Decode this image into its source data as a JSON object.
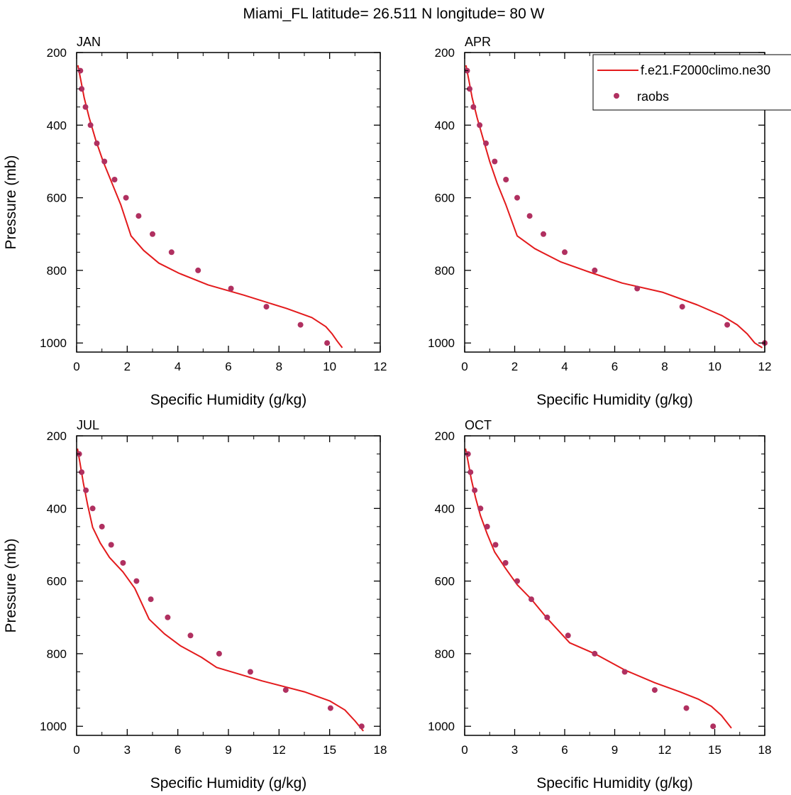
{
  "figure": {
    "title": "Miami_FL  latitude= 26.511 N longitude= 80 W"
  },
  "legend": {
    "model_label": "f.e21.F2000climo.ne30",
    "obs_label": "raobs",
    "placement": "top-right of APR panel"
  },
  "colors": {
    "model_line": "#e31a1c",
    "obs_marker": "#b03060",
    "axes": "#000000",
    "background": "#ffffff"
  },
  "chart_data": [
    {
      "type": "line",
      "panel_label": "JAN",
      "xlabel": "Specific Humidity (g/kg)",
      "ylabel": "Pressure (mb)",
      "xlim": [
        0,
        12
      ],
      "ylim": [
        200,
        1025
      ],
      "y_inverted": true,
      "xticks": [
        0,
        2,
        4,
        6,
        8,
        10,
        12
      ],
      "yticks": [
        200,
        400,
        600,
        800,
        1000
      ],
      "grid": false,
      "series": [
        {
          "name": "f.e21.F2000climo.ne30",
          "style": "line",
          "x": [
            0.05,
            0.15,
            0.3,
            0.5,
            0.75,
            1.05,
            1.4,
            1.75,
            2.15,
            2.65,
            3.25,
            4.05,
            5.2,
            6.6,
            8.3,
            9.3,
            9.85,
            10.1,
            10.3,
            10.5
          ],
          "y": [
            235,
            270,
            325,
            380,
            440,
            500,
            560,
            620,
            705,
            745,
            780,
            808,
            840,
            868,
            905,
            930,
            955,
            975,
            995,
            1013
          ]
        },
        {
          "name": "raobs",
          "style": "markers",
          "x": [
            0.15,
            0.2,
            0.35,
            0.55,
            0.8,
            1.1,
            1.5,
            1.95,
            2.45,
            3.0,
            3.75,
            4.8,
            6.1,
            7.5,
            8.85,
            9.9
          ],
          "y": [
            250,
            300,
            350,
            400,
            450,
            500,
            550,
            600,
            650,
            700,
            750,
            800,
            850,
            900,
            950,
            1000
          ]
        }
      ]
    },
    {
      "type": "line",
      "panel_label": "APR",
      "xlabel": "Specific Humidity (g/kg)",
      "ylabel": "",
      "xlim": [
        0,
        12
      ],
      "ylim": [
        200,
        1025
      ],
      "y_inverted": true,
      "xticks": [
        0,
        2,
        4,
        6,
        8,
        10,
        12
      ],
      "yticks": [
        200,
        400,
        600,
        800,
        1000
      ],
      "grid": false,
      "series": [
        {
          "name": "f.e21.F2000climo.ne30",
          "style": "line",
          "x": [
            0.05,
            0.15,
            0.3,
            0.5,
            0.75,
            1.0,
            1.3,
            1.65,
            2.1,
            2.8,
            3.85,
            5.0,
            6.3,
            7.9,
            9.3,
            10.3,
            10.9,
            11.3,
            11.6,
            11.9
          ],
          "y": [
            235,
            270,
            325,
            380,
            440,
            500,
            560,
            620,
            705,
            740,
            777,
            805,
            835,
            860,
            895,
            925,
            950,
            975,
            1000,
            1013
          ]
        },
        {
          "name": "raobs",
          "style": "markers",
          "x": [
            0.1,
            0.2,
            0.35,
            0.6,
            0.85,
            1.2,
            1.65,
            2.1,
            2.6,
            3.15,
            4.0,
            5.2,
            6.9,
            8.7,
            10.5,
            12.0
          ],
          "y": [
            250,
            300,
            350,
            400,
            450,
            500,
            550,
            600,
            650,
            700,
            750,
            800,
            850,
            900,
            950,
            1000
          ]
        }
      ]
    },
    {
      "type": "line",
      "panel_label": "JUL",
      "xlabel": "Specific Humidity (g/kg)",
      "ylabel": "Pressure (mb)",
      "xlim": [
        0,
        18
      ],
      "ylim": [
        200,
        1025
      ],
      "y_inverted": true,
      "xticks": [
        0,
        3,
        6,
        9,
        12,
        15,
        18
      ],
      "yticks": [
        200,
        400,
        600,
        800,
        1000
      ],
      "grid": false,
      "series": [
        {
          "name": "f.e21.F2000climo.ne30",
          "style": "line",
          "x": [
            0.05,
            0.2,
            0.4,
            0.65,
            0.95,
            1.4,
            1.95,
            2.75,
            3.45,
            4.3,
            5.2,
            6.15,
            7.4,
            8.3,
            11.0,
            13.5,
            15.0,
            15.9,
            16.5,
            17.0
          ],
          "y": [
            235,
            275,
            330,
            390,
            452,
            495,
            535,
            575,
            620,
            705,
            745,
            778,
            810,
            838,
            875,
            905,
            930,
            955,
            985,
            1013
          ]
        },
        {
          "name": "raobs",
          "style": "markers",
          "x": [
            0.15,
            0.3,
            0.55,
            0.95,
            1.5,
            2.05,
            2.75,
            3.55,
            4.4,
            5.4,
            6.75,
            8.45,
            10.3,
            12.4,
            15.05,
            16.9
          ],
          "y": [
            250,
            300,
            350,
            400,
            450,
            500,
            550,
            600,
            650,
            700,
            750,
            800,
            850,
            900,
            950,
            1000
          ]
        }
      ]
    },
    {
      "type": "line",
      "panel_label": "OCT",
      "xlabel": "Specific Humidity (g/kg)",
      "ylabel": "",
      "xlim": [
        0,
        18
      ],
      "ylim": [
        200,
        1025
      ],
      "y_inverted": true,
      "xticks": [
        0,
        3,
        6,
        9,
        12,
        15,
        18
      ],
      "yticks": [
        200,
        400,
        600,
        800,
        1000
      ],
      "grid": false,
      "series": [
        {
          "name": "f.e21.F2000climo.ne30",
          "style": "line",
          "x": [
            0.05,
            0.2,
            0.4,
            0.65,
            0.95,
            1.35,
            1.8,
            2.45,
            3.15,
            4.0,
            4.9,
            6.3,
            7.8,
            9.6,
            11.4,
            12.9,
            14.0,
            14.8,
            15.4,
            16.0
          ],
          "y": [
            235,
            270,
            320,
            370,
            420,
            470,
            520,
            565,
            610,
            650,
            700,
            770,
            800,
            845,
            880,
            905,
            925,
            945,
            970,
            1005
          ]
        },
        {
          "name": "raobs",
          "style": "markers",
          "x": [
            0.2,
            0.35,
            0.6,
            0.95,
            1.35,
            1.85,
            2.45,
            3.15,
            4.0,
            4.95,
            6.2,
            7.8,
            9.6,
            11.4,
            13.3,
            14.9
          ],
          "y": [
            250,
            300,
            350,
            400,
            450,
            500,
            550,
            600,
            650,
            700,
            750,
            800,
            850,
            900,
            950,
            1000
          ]
        }
      ]
    }
  ]
}
